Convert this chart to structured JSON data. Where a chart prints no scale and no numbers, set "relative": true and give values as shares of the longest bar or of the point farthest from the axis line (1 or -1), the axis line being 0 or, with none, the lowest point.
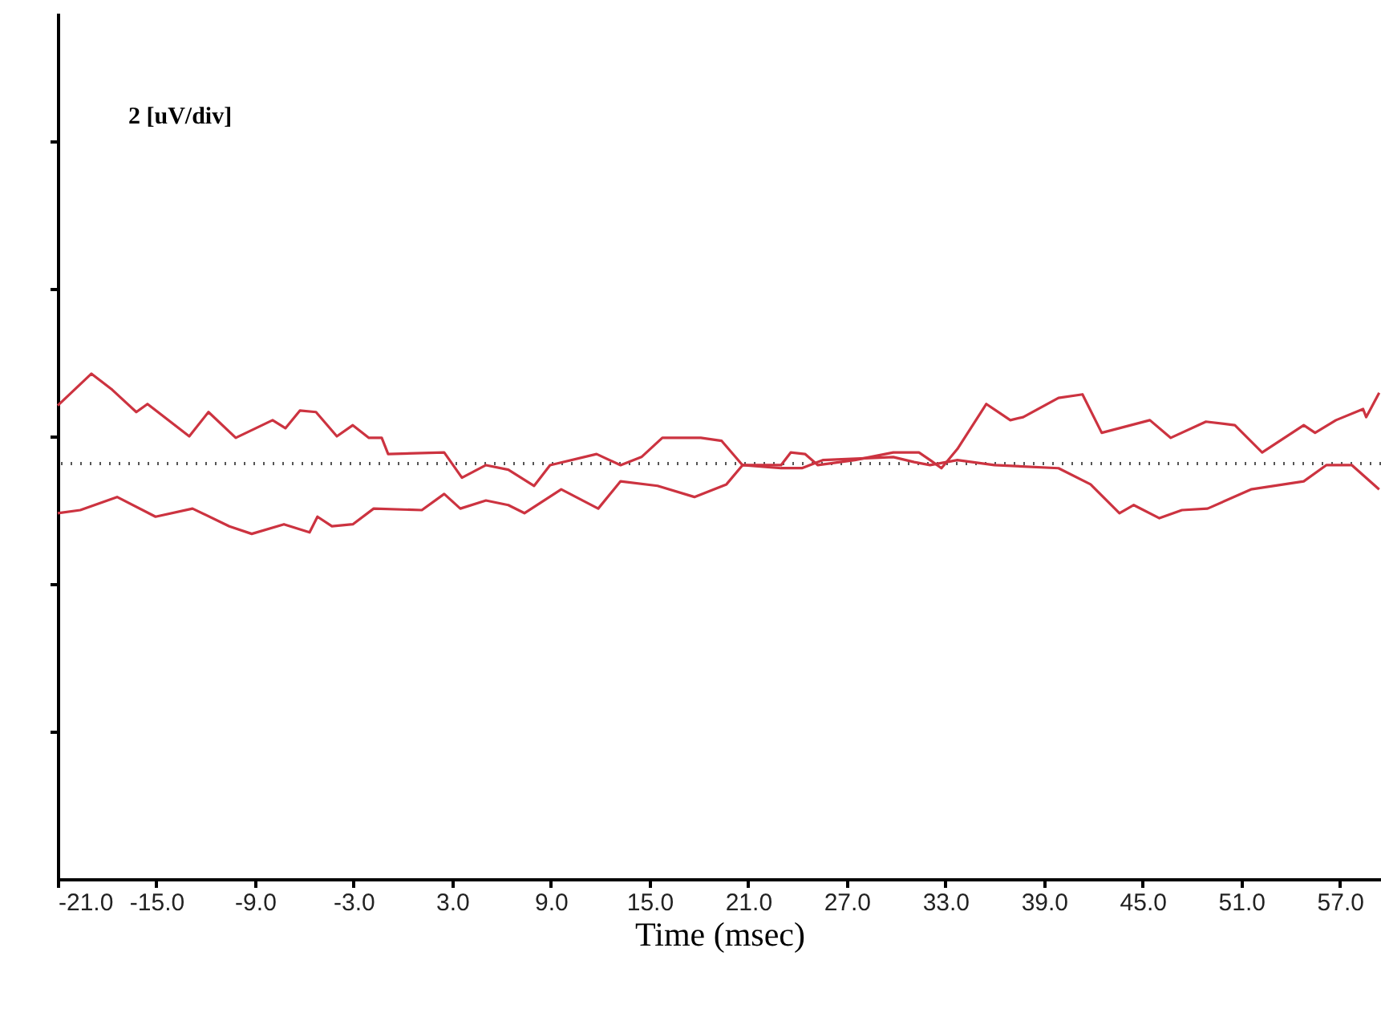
{
  "chart_data": {
    "type": "line",
    "relative": true,
    "xlabel": "Time (msec)",
    "annotations": [
      "2 [uV/div]"
    ],
    "xlim": [
      -21,
      59.5
    ],
    "xticks": [
      {
        "value": -21,
        "label": "-21.0"
      },
      {
        "value": -15,
        "label": "-15.0"
      },
      {
        "value": -9,
        "label": "-9.0"
      },
      {
        "value": -3,
        "label": "-3.0"
      },
      {
        "value": 3,
        "label": "3.0"
      },
      {
        "value": 9,
        "label": "9.0"
      },
      {
        "value": 15,
        "label": "15.0"
      },
      {
        "value": 21,
        "label": "21.0"
      },
      {
        "value": 27,
        "label": "27.0"
      },
      {
        "value": 33,
        "label": "33.0"
      },
      {
        "value": 39,
        "label": "39.0"
      },
      {
        "value": 45,
        "label": "45.0"
      },
      {
        "value": 51,
        "label": "51.0"
      },
      {
        "value": 57,
        "label": "57.0"
      }
    ],
    "marker": "none",
    "line_style": "solid",
    "ref_lines": [
      {
        "axis": "y",
        "value": 0.822,
        "color": "#555555",
        "line_style": "dotted"
      }
    ],
    "series": [
      {
        "color": "#cc3340",
        "x": [
          -21.0,
          -18.95,
          -17.68,
          -16.22,
          -15.54,
          -13.0,
          -11.83,
          -10.17,
          -7.93,
          -7.15,
          -6.27,
          -5.29,
          -4.02,
          -3.05,
          -2.07,
          -1.29,
          -0.9,
          2.51,
          3.59,
          5.05,
          6.41,
          7.98,
          8.95,
          11.78,
          13.24,
          14.51,
          15.78,
          18.12,
          19.39,
          20.66,
          23.0,
          23.59,
          24.46,
          25.24,
          27.49,
          29.83,
          31.39,
          32.07,
          32.76,
          33.73,
          35.49,
          36.95,
          37.73,
          39.88,
          41.34,
          42.51,
          45.44,
          46.71,
          48.85,
          50.61,
          52.27,
          54.8,
          55.49,
          56.76,
          58.41,
          58.6,
          59.39
        ],
        "values": [
          0.937,
          1.0,
          0.968,
          0.924,
          0.94,
          0.876,
          0.924,
          0.873,
          0.908,
          0.892,
          0.927,
          0.924,
          0.876,
          0.898,
          0.873,
          0.873,
          0.841,
          0.844,
          0.794,
          0.819,
          0.81,
          0.778,
          0.819,
          0.841,
          0.819,
          0.835,
          0.873,
          0.873,
          0.867,
          0.819,
          0.819,
          0.844,
          0.841,
          0.819,
          0.829,
          0.844,
          0.844,
          0.829,
          0.813,
          0.851,
          0.94,
          0.908,
          0.914,
          0.952,
          0.959,
          0.883,
          0.908,
          0.873,
          0.905,
          0.898,
          0.844,
          0.898,
          0.883,
          0.908,
          0.93,
          0.914,
          0.962
        ]
      },
      {
        "color": "#cc3340",
        "x": [
          -21.0,
          -19.63,
          -17.39,
          -15.05,
          -12.8,
          -10.56,
          -9.2,
          -7.24,
          -5.68,
          -5.2,
          -4.32,
          -3.05,
          -1.78,
          1.15,
          2.51,
          3.49,
          5.05,
          6.41,
          7.39,
          9.63,
          11.88,
          13.24,
          15.49,
          17.73,
          19.68,
          20.66,
          23.0,
          24.27,
          25.54,
          29.83,
          31.1,
          32.07,
          33.73,
          35.98,
          39.88,
          41.83,
          43.59,
          44.46,
          46.02,
          47.39,
          48.95,
          51.59,
          54.8,
          56.17,
          57.73,
          59.39
        ],
        "values": [
          0.724,
          0.73,
          0.756,
          0.717,
          0.733,
          0.698,
          0.683,
          0.702,
          0.686,
          0.717,
          0.698,
          0.702,
          0.733,
          0.73,
          0.762,
          0.733,
          0.749,
          0.74,
          0.724,
          0.771,
          0.733,
          0.787,
          0.778,
          0.756,
          0.781,
          0.819,
          0.813,
          0.813,
          0.829,
          0.835,
          0.825,
          0.819,
          0.829,
          0.819,
          0.813,
          0.781,
          0.724,
          0.74,
          0.714,
          0.73,
          0.733,
          0.771,
          0.787,
          0.819,
          0.819,
          0.771
        ]
      }
    ]
  }
}
